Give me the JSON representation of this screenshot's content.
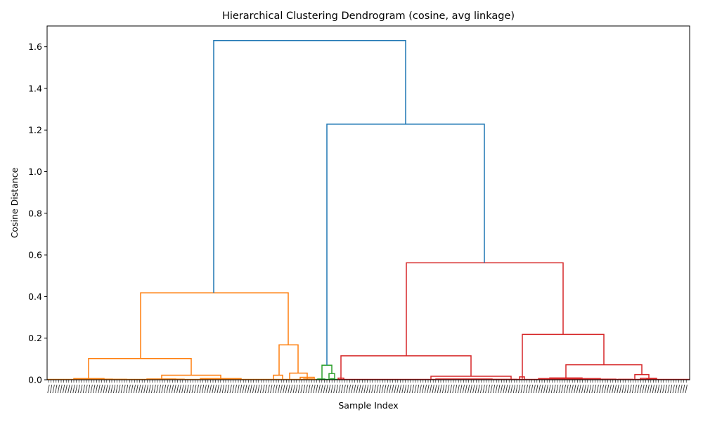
{
  "chart_data": {
    "type": "dendrogram",
    "title": "Hierarchical Clustering Dendrogram (cosine, avg linkage)",
    "xlabel": "Sample Index",
    "ylabel": "Cosine Distance",
    "ylim": [
      0,
      1.7
    ],
    "yticks": [
      0.0,
      0.2,
      0.4,
      0.6,
      0.8,
      1.0,
      1.2,
      1.4,
      1.6
    ],
    "ytick_labels": [
      "0.0",
      "0.2",
      "0.4",
      "0.6",
      "0.8",
      "1.0",
      "1.2",
      "1.4",
      "1.6"
    ],
    "grid": false,
    "colors": {
      "above_threshold": "#1f77b4",
      "cluster_1": "#ff7f0e",
      "cluster_2": "#2ca02c",
      "cluster_3": "#d62728"
    },
    "major_links": [
      {
        "color": "cluster_1",
        "height": 0.418,
        "left_height": 0.102,
        "right_height": 0.168
      },
      {
        "color": "cluster_1",
        "height": 0.102,
        "left_height": 0.005,
        "right_height": 0.022
      },
      {
        "color": "cluster_1",
        "height": 0.168,
        "left_height": 0.022,
        "right_height": 0.032
      },
      {
        "color": "cluster_2",
        "height": 0.07,
        "left_height": 0.0,
        "right_height": 0.03
      },
      {
        "color": "cluster_3",
        "height": 0.562,
        "left_height": 0.115,
        "right_height": 0.218
      },
      {
        "color": "cluster_3",
        "height": 0.115,
        "left_height": 0.0,
        "right_height": 0.017
      },
      {
        "color": "cluster_3",
        "height": 0.218,
        "left_height": 0.005,
        "right_height": 0.072
      },
      {
        "color": "cluster_3",
        "height": 0.072,
        "left_height": 0.01,
        "right_height": 0.025
      },
      {
        "color": "above_threshold",
        "height": 1.228,
        "left_height": 0.07,
        "right_height": 0.562
      },
      {
        "color": "above_threshold",
        "height": 1.63,
        "left_height": 0.418,
        "right_height": 1.228
      }
    ]
  }
}
